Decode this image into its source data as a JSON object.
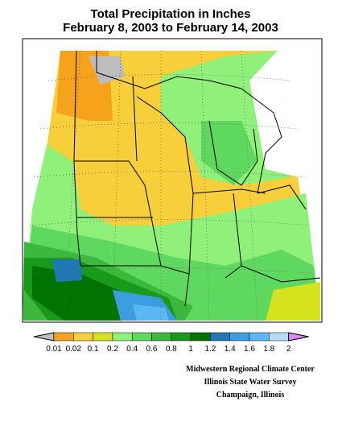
{
  "title": [
    "Total Precipitation in Inches",
    "February 8, 2003 to February 14, 2003"
  ],
  "legend": {
    "labels": [
      "0.01",
      "0.02",
      "0.1",
      "0.2",
      "0.4",
      "0.6",
      "0.8",
      "1",
      "1.2",
      "1.4",
      "1.6",
      "1.8",
      "2"
    ],
    "colors": [
      "#bdbdbd",
      "#f7a21b",
      "#f7cf3a",
      "#d6e31c",
      "#8ff07a",
      "#5fd85f",
      "#3cb83c",
      "#1a9a1a",
      "#007300",
      "#1f78b4",
      "#3a9ee0",
      "#5cb8f2",
      "#b5dcf5",
      "#d98aee"
    ]
  },
  "credits": [
    "Midwestern Regional Climate Center",
    "Illinois State Water Survey",
    "Champaign, Illinois"
  ]
}
